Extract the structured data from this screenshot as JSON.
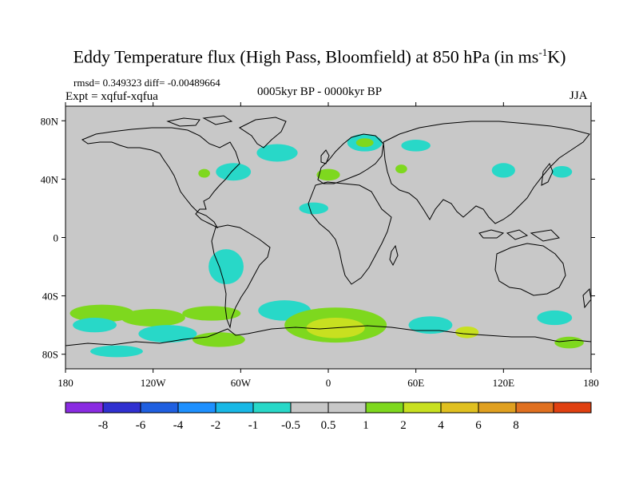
{
  "title": {
    "main": "Eddy Temperature flux (High Pass, Bloomfield) at 850 hPa (in ms",
    "sup": "-1",
    "end": "K)"
  },
  "stats_line": "rmsd= 0.349323 diff= -0.00489664",
  "expt_line": "Expt = xqfuf-xqfua",
  "period": "0005kyr BP - 0000kyr BP",
  "season": "JJA",
  "map": {
    "lon_range": [
      -180,
      180
    ],
    "lat_range": [
      -90,
      90
    ],
    "x_ticks": [
      {
        "lon": -180,
        "label": "180"
      },
      {
        "lon": -120,
        "label": "120W"
      },
      {
        "lon": -60,
        "label": "60W"
      },
      {
        "lon": 0,
        "label": "0"
      },
      {
        "lon": 60,
        "label": "60E"
      },
      {
        "lon": 120,
        "label": "120E"
      },
      {
        "lon": 180,
        "label": "180"
      }
    ],
    "y_ticks": [
      {
        "lat": 80,
        "label": "80N"
      },
      {
        "lat": 40,
        "label": "40N"
      },
      {
        "lat": 0,
        "label": "0"
      },
      {
        "lat": -40,
        "label": "40S"
      },
      {
        "lat": -80,
        "label": "80S"
      }
    ],
    "background_color": "#c8c8c8"
  },
  "colorbar": {
    "colors": [
      "#8a2be2",
      "#3030d0",
      "#1f5fe0",
      "#1e90ff",
      "#18b8e6",
      "#28d8c8",
      "#c8c8c8",
      "#c8c8c8",
      "#7ed81e",
      "#c8e020",
      "#e0c020",
      "#e0a020",
      "#e07020",
      "#e04010"
    ],
    "labels": [
      "-8",
      "-6",
      "-4",
      "-2",
      "-1",
      "-0.5",
      "0.5",
      "1",
      "2",
      "4",
      "6",
      "8"
    ]
  },
  "anomalies": [
    {
      "lon": -155,
      "lat": -52,
      "rx": 22,
      "ry": 6,
      "color": "#7ed81e"
    },
    {
      "lon": -160,
      "lat": -60,
      "rx": 15,
      "ry": 5,
      "color": "#28d8c8"
    },
    {
      "lon": -120,
      "lat": -55,
      "rx": 22,
      "ry": 6,
      "color": "#7ed81e"
    },
    {
      "lon": -110,
      "lat": -66,
      "rx": 20,
      "ry": 6,
      "color": "#28d8c8"
    },
    {
      "lon": -80,
      "lat": -52,
      "rx": 20,
      "ry": 5,
      "color": "#7ed81e"
    },
    {
      "lon": -75,
      "lat": -70,
      "rx": 18,
      "ry": 5,
      "color": "#7ed81e"
    },
    {
      "lon": -70,
      "lat": -20,
      "rx": 12,
      "ry": 12,
      "color": "#28d8c8"
    },
    {
      "lon": -30,
      "lat": -50,
      "rx": 18,
      "ry": 7,
      "color": "#28d8c8"
    },
    {
      "lon": 5,
      "lat": -60,
      "rx": 35,
      "ry": 12,
      "color": "#7ed81e"
    },
    {
      "lon": 5,
      "lat": -62,
      "rx": 20,
      "ry": 7,
      "color": "#c8e020"
    },
    {
      "lon": 70,
      "lat": -60,
      "rx": 15,
      "ry": 6,
      "color": "#28d8c8"
    },
    {
      "lon": 95,
      "lat": -65,
      "rx": 8,
      "ry": 4,
      "color": "#c8e020"
    },
    {
      "lon": 155,
      "lat": -55,
      "rx": 12,
      "ry": 5,
      "color": "#28d8c8"
    },
    {
      "lon": 165,
      "lat": -72,
      "rx": 10,
      "ry": 4,
      "color": "#7ed81e"
    },
    {
      "lon": -145,
      "lat": -78,
      "rx": 18,
      "ry": 4,
      "color": "#28d8c8"
    },
    {
      "lon": -65,
      "lat": 45,
      "rx": 12,
      "ry": 6,
      "color": "#28d8c8"
    },
    {
      "lon": -35,
      "lat": 58,
      "rx": 14,
      "ry": 6,
      "color": "#28d8c8"
    },
    {
      "lon": -85,
      "lat": 44,
      "rx": 4,
      "ry": 3,
      "color": "#7ed81e"
    },
    {
      "lon": 25,
      "lat": 65,
      "rx": 12,
      "ry": 6,
      "color": "#28d8c8"
    },
    {
      "lon": 25,
      "lat": 65,
      "rx": 6,
      "ry": 3,
      "color": "#7ed81e"
    },
    {
      "lon": 0,
      "lat": 43,
      "rx": 8,
      "ry": 4,
      "color": "#7ed81e"
    },
    {
      "lon": -10,
      "lat": 20,
      "rx": 10,
      "ry": 4,
      "color": "#28d8c8"
    },
    {
      "lon": 60,
      "lat": 63,
      "rx": 10,
      "ry": 4,
      "color": "#28d8c8"
    },
    {
      "lon": 120,
      "lat": 46,
      "rx": 8,
      "ry": 5,
      "color": "#28d8c8"
    },
    {
      "lon": 160,
      "lat": 45,
      "rx": 7,
      "ry": 4,
      "color": "#28d8c8"
    },
    {
      "lon": 50,
      "lat": 47,
      "rx": 4,
      "ry": 3,
      "color": "#7ed81e"
    }
  ]
}
